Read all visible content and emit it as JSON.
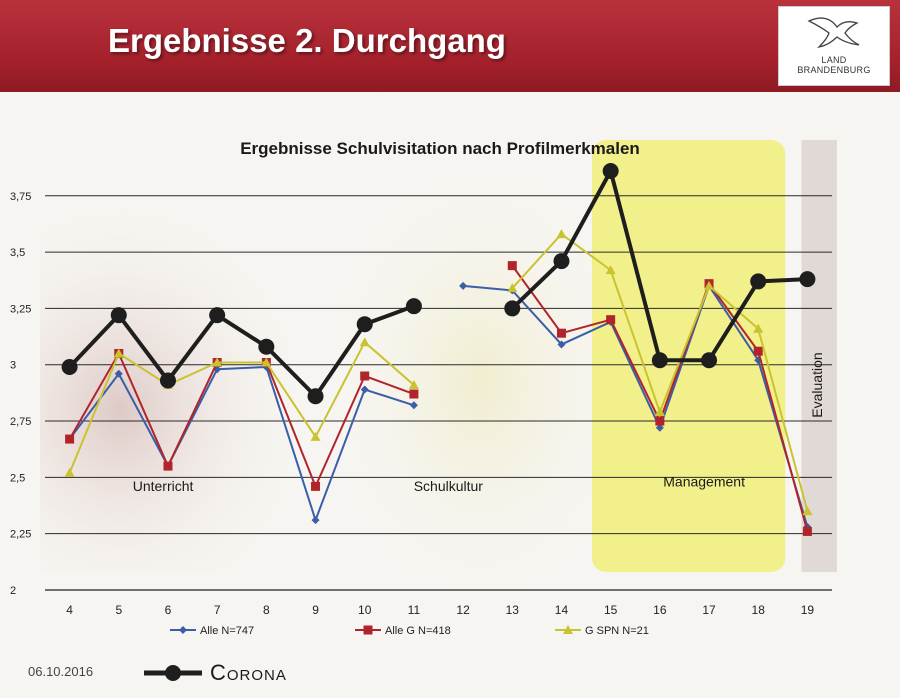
{
  "header": {
    "title": "Ergebnisse 2. Durchgang",
    "logo_text_line1": "LAND",
    "logo_text_line2": "BRANDENBURG"
  },
  "footer": {
    "date": "06.10.2016",
    "highlight_legend_label": "Corona"
  },
  "colors": {
    "header_red": "#a3202b",
    "series_alle": "#3a5ea8",
    "series_alle_g": "#b0242c",
    "series_g_spn": "#c9c330",
    "series_corona": "#1e1e1e",
    "management_highlight": "#f2f08a"
  },
  "chart_data": {
    "type": "line",
    "title": "Ergebnisse Schulvisitation nach Profilmerkmalen",
    "x": [
      4,
      5,
      6,
      7,
      8,
      9,
      10,
      11,
      12,
      13,
      14,
      15,
      16,
      17,
      18,
      19
    ],
    "xlim": [
      3.5,
      19.5
    ],
    "ylim": [
      2,
      3.9
    ],
    "yticks": [
      2,
      2.25,
      2.5,
      2.75,
      3,
      3.25,
      3.5,
      3.75
    ],
    "ytick_labels": [
      "2",
      "2,25",
      "2,5",
      "2,75",
      "3",
      "3,25",
      "3,5",
      "3,75"
    ],
    "grid": true,
    "legend_position": "bottom",
    "sections": [
      {
        "label": "Unterricht",
        "x": 5.9,
        "y": 2.44
      },
      {
        "label": "Schulkultur",
        "x": 11.7,
        "y": 2.44
      },
      {
        "label": "Management",
        "x": 16.9,
        "y": 2.46
      },
      {
        "label": "Evaluation",
        "x": 19.3,
        "y": 2.91
      }
    ],
    "series": [
      {
        "name": "Alle N=747",
        "marker": "diamond",
        "segments": [
          [
            [
              4,
              2.67
            ],
            [
              5,
              2.96
            ],
            [
              6,
              2.55
            ],
            [
              7,
              2.98
            ],
            [
              8,
              2.99
            ],
            [
              9,
              2.31
            ],
            [
              10,
              2.89
            ],
            [
              11,
              2.82
            ]
          ],
          [
            [
              12,
              3.35
            ],
            [
              13,
              3.33
            ],
            [
              14,
              3.09
            ],
            [
              15,
              3.19
            ],
            [
              16,
              2.72
            ],
            [
              17,
              3.35
            ],
            [
              18,
              3.02
            ],
            [
              19,
              2.28
            ]
          ]
        ]
      },
      {
        "name": "Alle G N=418",
        "marker": "square",
        "segments": [
          [
            [
              4,
              2.67
            ],
            [
              5,
              3.05
            ],
            [
              6,
              2.55
            ],
            [
              7,
              3.01
            ],
            [
              8,
              3.01
            ],
            [
              9,
              2.46
            ],
            [
              10,
              2.95
            ],
            [
              11,
              2.87
            ]
          ],
          [
            [
              13,
              3.44
            ],
            [
              14,
              3.14
            ],
            [
              15,
              3.2
            ],
            [
              16,
              2.75
            ],
            [
              17,
              3.36
            ],
            [
              18,
              3.06
            ],
            [
              19,
              2.26
            ]
          ]
        ]
      },
      {
        "name": "G SPN N=21",
        "marker": "triangle",
        "segments": [
          [
            [
              4,
              2.52
            ],
            [
              5,
              3.05
            ],
            [
              6,
              2.91
            ],
            [
              7,
              3.01
            ],
            [
              8,
              3.01
            ],
            [
              9,
              2.68
            ],
            [
              10,
              3.1
            ],
            [
              11,
              2.91
            ]
          ],
          [
            [
              13,
              3.34
            ],
            [
              14,
              3.58
            ],
            [
              15,
              3.42
            ],
            [
              16,
              2.79
            ],
            [
              17,
              3.35
            ],
            [
              18,
              3.16
            ],
            [
              19,
              2.35
            ]
          ]
        ]
      },
      {
        "name": "Corona",
        "marker": "circle",
        "in_chart_legend": false,
        "segments": [
          [
            [
              4,
              2.99
            ],
            [
              5,
              3.22
            ],
            [
              6,
              2.93
            ],
            [
              7,
              3.22
            ],
            [
              8,
              3.08
            ],
            [
              9,
              2.86
            ],
            [
              10,
              3.18
            ],
            [
              11,
              3.26
            ]
          ],
          [
            [
              13,
              3.25
            ],
            [
              14,
              3.46
            ],
            [
              15,
              3.86
            ],
            [
              16,
              3.02
            ],
            [
              17,
              3.02
            ],
            [
              18,
              3.37
            ],
            [
              19,
              3.38
            ]
          ]
        ]
      }
    ]
  }
}
